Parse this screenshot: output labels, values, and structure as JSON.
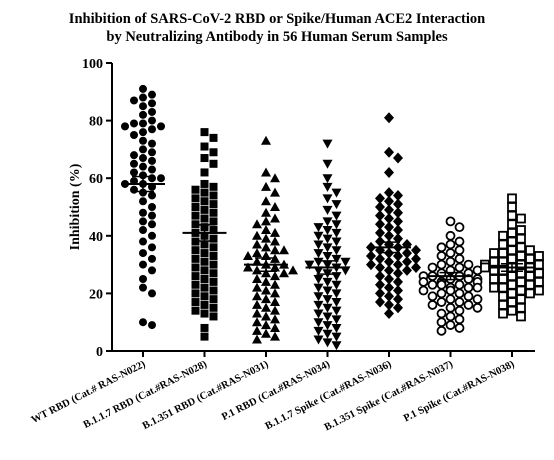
{
  "chart_data": {
    "type": "scatter",
    "title_lines": [
      "Inhibition of SARS-CoV-2 RBD or Spike/Human ACE2 Interaction",
      "by Neutralizing Antibody in 56 Human Serum Samples"
    ],
    "ylabel": "Inhibition (%)",
    "xlabel": "",
    "ylim": [
      0,
      100
    ],
    "yticks": [
      "0",
      "20",
      "40",
      "60",
      "80",
      "100"
    ],
    "grid": false,
    "colors": {
      "marker": "#000000",
      "axis": "#000000",
      "background": "#ffffff"
    },
    "series": [
      {
        "label": "WT RBD  (Cat.# RAS-N022)",
        "marker": "circle",
        "mean": 58,
        "sem": 2.6,
        "values": [
          91,
          89,
          88,
          87,
          86,
          85,
          83,
          82,
          80,
          79,
          79,
          78,
          78,
          77,
          76,
          75,
          73,
          72,
          70,
          69,
          68,
          67,
          66,
          65,
          64,
          63,
          62,
          61,
          60,
          60,
          59,
          58,
          58,
          57,
          56,
          55,
          54,
          52,
          50,
          48,
          47,
          45,
          44,
          42,
          40,
          38,
          36,
          34,
          32,
          30,
          28,
          25,
          22,
          20,
          10,
          9
        ]
      },
      {
        "label": "B.1.1.7 RBD  (Cat.#RAS-N028)",
        "marker": "square",
        "mean": 41,
        "sem": 2.8,
        "values": [
          76,
          74,
          71,
          69,
          67,
          65,
          62,
          58,
          57,
          56,
          55,
          54,
          53,
          52,
          51,
          50,
          49,
          48,
          47,
          46,
          45,
          44,
          43,
          42,
          41,
          40,
          39,
          38,
          37,
          36,
          35,
          34,
          33,
          32,
          31,
          30,
          29,
          28,
          27,
          26,
          25,
          24,
          23,
          22,
          21,
          20,
          19,
          18,
          17,
          16,
          15,
          14,
          13,
          12,
          8,
          5
        ]
      },
      {
        "label": "B.1.351 RBD  (Cat.#RAS-N031)",
        "marker": "triangle-up",
        "mean": 30,
        "sem": 2.3,
        "values": [
          73,
          62,
          60,
          57,
          55,
          52,
          50,
          48,
          46,
          45,
          44,
          42,
          41,
          40,
          39,
          38,
          37,
          36,
          35,
          34,
          33,
          32,
          31,
          30,
          30,
          29,
          29,
          28,
          28,
          27,
          26,
          25,
          24,
          23,
          22,
          21,
          20,
          19,
          18,
          17,
          16,
          15,
          14,
          13,
          12,
          11,
          10,
          9,
          8,
          7,
          6,
          5,
          4,
          33,
          35,
          27
        ]
      },
      {
        "label": "P.1 RBD  (Cat.#RAS-N034)",
        "marker": "triangle-down",
        "mean": 29,
        "sem": 2.3,
        "values": [
          72,
          65,
          60,
          57,
          55,
          53,
          51,
          49,
          47,
          45,
          44,
          43,
          42,
          41,
          40,
          39,
          38,
          37,
          36,
          35,
          34,
          33,
          32,
          31,
          30,
          30,
          29,
          28,
          27,
          26,
          25,
          24,
          23,
          22,
          21,
          20,
          19,
          18,
          17,
          16,
          15,
          14,
          13,
          12,
          11,
          10,
          9,
          8,
          7,
          6,
          5,
          4,
          3,
          2,
          31,
          28
        ]
      },
      {
        "label": "B.1.1.7 Spike  (Cat.#RAS-N036)",
        "marker": "diamond",
        "mean": 36,
        "sem": 1.8,
        "values": [
          81,
          69,
          67,
          62,
          55,
          54,
          53,
          52,
          51,
          50,
          49,
          48,
          47,
          46,
          45,
          44,
          43,
          42,
          41,
          40,
          39,
          38,
          37,
          37,
          36,
          36,
          35,
          35,
          34,
          34,
          33,
          33,
          32,
          32,
          31,
          31,
          30,
          30,
          29,
          29,
          28,
          28,
          27,
          26,
          25,
          24,
          23,
          22,
          21,
          20,
          19,
          18,
          17,
          16,
          15,
          13
        ]
      },
      {
        "label": "B.1.351 Spike  (Cat.#RAS-N037)",
        "marker": "circle-open",
        "mean": 26,
        "sem": 1.2,
        "values": [
          45,
          43,
          40,
          38,
          37,
          36,
          35,
          34,
          33,
          32,
          31,
          30,
          30,
          29,
          29,
          28,
          28,
          27,
          27,
          26,
          26,
          26,
          25,
          25,
          25,
          24,
          24,
          24,
          23,
          23,
          23,
          22,
          22,
          22,
          21,
          21,
          20,
          20,
          19,
          19,
          18,
          18,
          17,
          17,
          16,
          16,
          15,
          15,
          14,
          13,
          12,
          11,
          10,
          9,
          8,
          7
        ]
      },
      {
        "label": "P.1 Spike  (Cat.#RAS-N038)",
        "marker": "square-open",
        "mean": 29,
        "sem": 1.3,
        "values": [
          53,
          50,
          47,
          46,
          44,
          42,
          41,
          40,
          39,
          38,
          37,
          36,
          35,
          35,
          34,
          34,
          33,
          33,
          32,
          32,
          31,
          31,
          30,
          30,
          30,
          29,
          29,
          29,
          28,
          28,
          28,
          27,
          27,
          27,
          26,
          26,
          25,
          25,
          24,
          24,
          23,
          23,
          22,
          22,
          21,
          21,
          20,
          20,
          19,
          18,
          17,
          16,
          15,
          14,
          13,
          12
        ]
      }
    ]
  }
}
